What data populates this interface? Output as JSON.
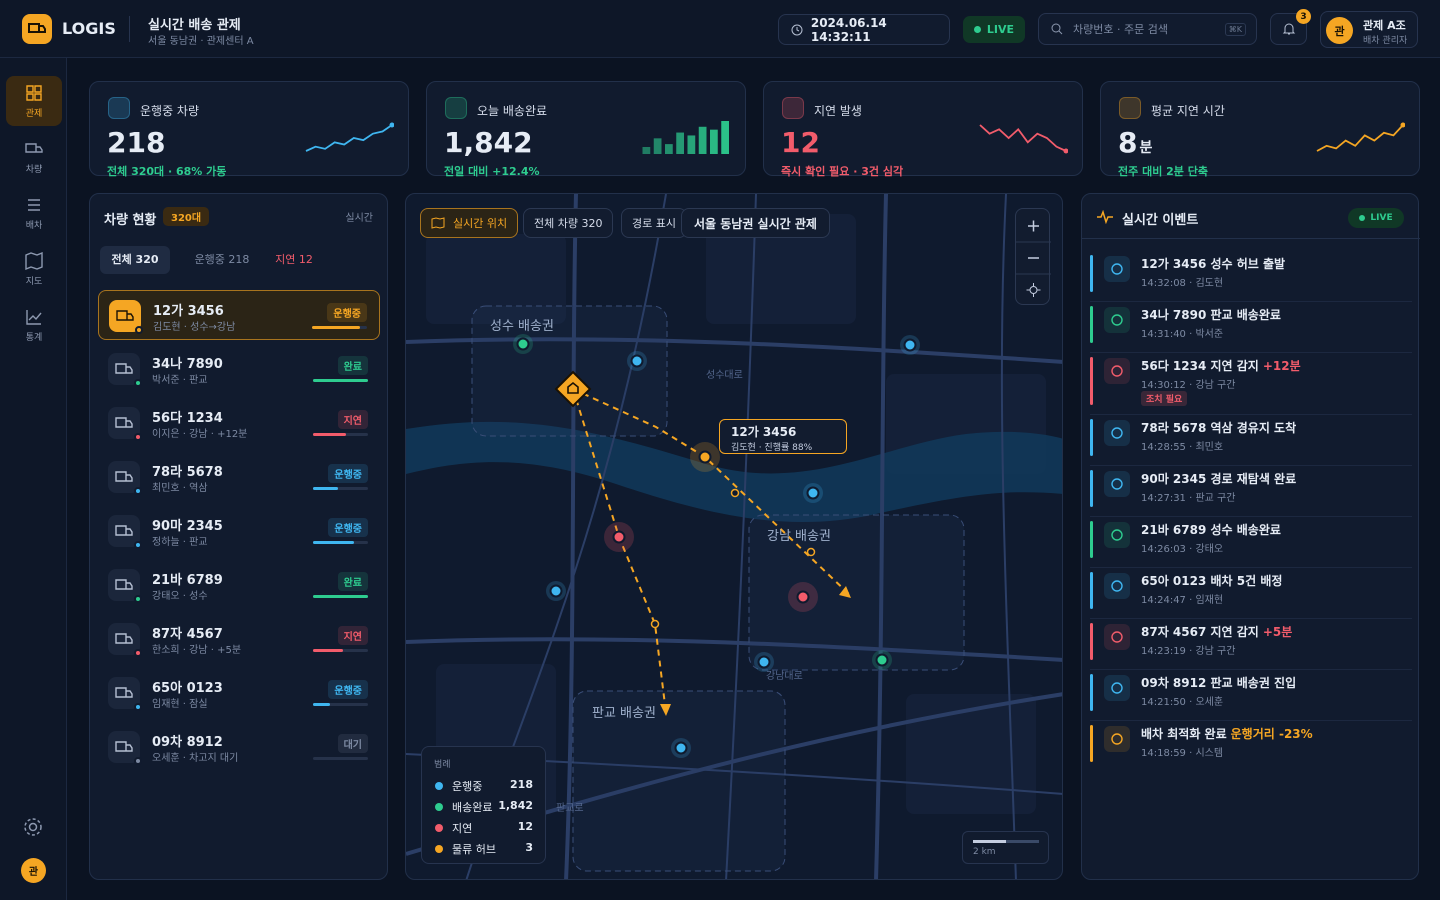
{
  "header": {
    "brand": "LOGIS",
    "title": "실시간 배송 관제",
    "subtitle": "서울 동남권 · 관제센터 A",
    "datetime": "2024.06.14 14:32:11",
    "live": "LIVE",
    "search_placeholder": "차량번호 · 주문 검색",
    "shortcut": "⌘K",
    "notification_count": "3",
    "user": {
      "avatar": "관",
      "name": "관제 A조",
      "role": "배차 관리자"
    }
  },
  "sidebar": {
    "items": [
      "관제",
      "차량",
      "배차",
      "지도",
      "통계"
    ],
    "avatar": "관"
  },
  "kpis": [
    {
      "label": "운행중 차량",
      "value": "218",
      "note": "전체 320대 · 68% 가동",
      "color": "#3fb6f0",
      "kind": "line",
      "trend": [
        3,
        4,
        3.5,
        5,
        4.5,
        6,
        5.5,
        7,
        7.5,
        9
      ]
    },
    {
      "label": "오늘 배송완료",
      "value": "1,842",
      "note": "전일 대비 +12.4%",
      "color": "#2ecc8f",
      "kind": "bar",
      "trend": [
        5,
        8,
        6,
        10,
        9,
        12,
        11,
        14
      ]
    },
    {
      "label": "지연 발생",
      "value": "12",
      "note": "즉시 확인 필요 · 3건 심각",
      "color": "#f25c6b",
      "kind": "line",
      "trend": [
        8,
        6,
        7,
        5,
        7,
        4,
        6,
        5,
        3,
        2
      ]
    },
    {
      "label": "평균 지연 시간",
      "value": "8",
      "unit": "분",
      "note": "전주 대비 2분 단축",
      "color": "#f5a623",
      "kind": "line",
      "trend": [
        2,
        3,
        2.5,
        4,
        3,
        5,
        4,
        5.5,
        5,
        7
      ]
    }
  ],
  "vehicles": {
    "title": "차량 현황",
    "badge": "320대",
    "link": "실시간",
    "tabs": [
      "전체 320",
      "운행중 218",
      "지연 12"
    ],
    "items": [
      {
        "id": "12가 3456",
        "meta": "김도현 · 성수→강남",
        "status": "운행중",
        "progress": 88,
        "color": "#f5a623"
      },
      {
        "id": "34나 7890",
        "meta": "박서준 · 판교",
        "status": "완료",
        "progress": 100,
        "color": "#2ecc8f"
      },
      {
        "id": "56다 1234",
        "meta": "이지은 · 강남 · +12분",
        "status": "지연",
        "progress": 60,
        "color": "#f25c6b"
      },
      {
        "id": "78라 5678",
        "meta": "최민호 · 역삼",
        "status": "운행중",
        "progress": 45,
        "color": "#3fb6f0"
      },
      {
        "id": "90마 2345",
        "meta": "정하늘 · 판교",
        "status": "운행중",
        "progress": 75,
        "color": "#3fb6f0"
      },
      {
        "id": "21바 6789",
        "meta": "강태오 · 성수",
        "status": "완료",
        "progress": 100,
        "color": "#2ecc8f"
      },
      {
        "id": "87자 4567",
        "meta": "한소희 · 강남 · +5분",
        "status": "지연",
        "progress": 55,
        "color": "#f25c6b"
      },
      {
        "id": "65아 0123",
        "meta": "임재현 · 잠실",
        "status": "운행중",
        "progress": 30,
        "color": "#3fb6f0"
      },
      {
        "id": "09차 8912",
        "meta": "오세훈 · 차고지 대기",
        "status": "대기",
        "progress": 0,
        "color": "#7d8aa3"
      }
    ]
  },
  "map": {
    "buttons": [
      "실시간 위치",
      "전체 차량 320",
      "경로 표시"
    ],
    "title": "서울 동남권 실시간 관제",
    "zones": [
      "성수 배송권",
      "강남 배송권",
      "판교 배송권"
    ],
    "roads": [
      "성수대로",
      "강남대로",
      "판교로"
    ],
    "tooltip": {
      "title": "12가 3456",
      "detail": "김도현 · 진행률 88%"
    },
    "legend": {
      "title": "범례",
      "items": [
        {
          "name": "운행중",
          "value": "218",
          "color": "#3fb6f0"
        },
        {
          "name": "배송완료",
          "value": "1,842",
          "color": "#2ecc8f"
        },
        {
          "name": "지연",
          "value": "12",
          "color": "#f25c6b"
        },
        {
          "name": "물류 허브",
          "value": "3",
          "color": "#f5a623"
        }
      ]
    },
    "scale": "2 km"
  },
  "events": {
    "title": "실시간 이벤트",
    "live": "LIVE",
    "items": [
      {
        "title": "12가 3456 성수 허브 출발",
        "meta": "14:32:08 · 김도현",
        "color": "#3fb6f0"
      },
      {
        "title": "34나 7890 판교 배송완료",
        "meta": "14:31:40 · 박서준",
        "color": "#2ecc8f"
      },
      {
        "title": "56다 1234 지연 감지",
        "highlight": "+12분",
        "meta": "14:30:12 · 강남 구간",
        "tag": "조치 필요",
        "color": "#f25c6b"
      },
      {
        "title": "78라 5678 역삼 경유지 도착",
        "meta": "14:28:55 · 최민호",
        "color": "#3fb6f0"
      },
      {
        "title": "90마 2345 경로 재탐색 완료",
        "meta": "14:27:31 · 판교 구간",
        "color": "#3fb6f0"
      },
      {
        "title": "21바 6789 성수 배송완료",
        "meta": "14:26:03 · 강태오",
        "color": "#2ecc8f"
      },
      {
        "title": "65아 0123 배차 5건 배정",
        "meta": "14:24:47 · 임재현",
        "color": "#3fb6f0"
      },
      {
        "title": "87자 4567 지연 감지",
        "highlight": "+5분",
        "meta": "14:23:19 · 강남 구간",
        "color": "#f25c6b"
      },
      {
        "title": "09차 8912 판교 배송권 진입",
        "meta": "14:21:50 · 오세훈",
        "color": "#3fb6f0"
      },
      {
        "title": "배차 최적화 완료",
        "highlight": "운행거리 -23%",
        "meta": "14:18:59 · 시스템",
        "color": "#f5a623"
      }
    ]
  }
}
